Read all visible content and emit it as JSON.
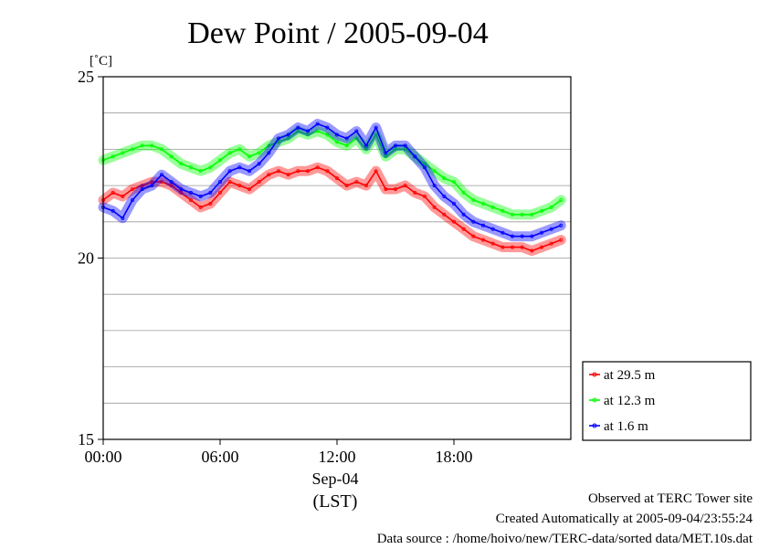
{
  "chart_data": {
    "type": "line",
    "title": "Dew Point / 2005-09-04",
    "ylabel": "[˚C]",
    "ylim": [
      15,
      25
    ],
    "yticks": [
      "25",
      "20",
      "15"
    ],
    "ytick_values": [
      25,
      20,
      15
    ],
    "xlim": [
      0,
      24
    ],
    "xticks": [
      "00:00",
      "06:00",
      "12:00",
      "18:00"
    ],
    "xtick_values": [
      0,
      6,
      12,
      18
    ],
    "xlabel_date": "Sep-04",
    "xlabel_unit": "(LST)",
    "grid": true,
    "legend_position": "right",
    "series": [
      {
        "name": "at 29.5 m",
        "color": "#ff0000",
        "x": [
          0,
          0.5,
          1,
          1.5,
          2,
          2.5,
          3,
          3.5,
          4,
          4.5,
          5,
          5.5,
          6,
          6.5,
          7,
          7.5,
          8,
          8.5,
          9,
          9.5,
          10,
          10.5,
          11,
          11.5,
          12,
          12.5,
          13,
          13.5,
          14,
          14.5,
          15,
          15.5,
          16,
          16.5,
          17,
          17.5,
          18,
          18.5,
          19,
          19.5,
          20,
          20.5,
          21,
          21.5,
          22,
          22.5,
          23,
          23.5
        ],
        "y": [
          21.6,
          21.8,
          21.7,
          21.9,
          22.0,
          22.1,
          22.1,
          22.0,
          21.8,
          21.6,
          21.4,
          21.5,
          21.8,
          22.1,
          22.0,
          21.9,
          22.1,
          22.3,
          22.4,
          22.3,
          22.4,
          22.4,
          22.5,
          22.4,
          22.2,
          22.0,
          22.1,
          22.0,
          22.4,
          21.9,
          21.9,
          22.0,
          21.8,
          21.7,
          21.4,
          21.2,
          21.0,
          20.8,
          20.6,
          20.5,
          20.4,
          20.3,
          20.3,
          20.3,
          20.2,
          20.3,
          20.4,
          20.5
        ]
      },
      {
        "name": "at 12.3 m",
        "color": "#00ff00",
        "x": [
          0,
          0.5,
          1,
          1.5,
          2,
          2.5,
          3,
          3.5,
          4,
          4.5,
          5,
          5.5,
          6,
          6.5,
          7,
          7.5,
          8,
          8.5,
          9,
          9.5,
          10,
          10.5,
          11,
          11.5,
          12,
          12.5,
          13,
          13.5,
          14,
          14.5,
          15,
          15.5,
          16,
          16.5,
          17,
          17.5,
          18,
          18.5,
          19,
          19.5,
          20,
          20.5,
          21,
          21.5,
          22,
          22.5,
          23,
          23.5
        ],
        "y": [
          22.7,
          22.8,
          22.9,
          23.0,
          23.1,
          23.1,
          23.0,
          22.8,
          22.6,
          22.5,
          22.4,
          22.5,
          22.7,
          22.9,
          23.0,
          22.8,
          22.9,
          23.1,
          23.2,
          23.3,
          23.5,
          23.4,
          23.5,
          23.4,
          23.2,
          23.1,
          23.3,
          23.0,
          23.4,
          22.8,
          23.0,
          23.0,
          22.8,
          22.6,
          22.4,
          22.2,
          22.1,
          21.8,
          21.6,
          21.5,
          21.4,
          21.3,
          21.2,
          21.2,
          21.2,
          21.3,
          21.4,
          21.6
        ]
      },
      {
        "name": "at 1.6 m",
        "color": "#0000ff",
        "x": [
          0,
          0.5,
          1,
          1.5,
          2,
          2.5,
          3,
          3.5,
          4,
          4.5,
          5,
          5.5,
          6,
          6.5,
          7,
          7.5,
          8,
          8.5,
          9,
          9.5,
          10,
          10.5,
          11,
          11.5,
          12,
          12.5,
          13,
          13.5,
          14,
          14.5,
          15,
          15.5,
          16,
          16.5,
          17,
          17.5,
          18,
          18.5,
          19,
          19.5,
          20,
          20.5,
          21,
          21.5,
          22,
          22.5,
          23,
          23.5
        ],
        "y": [
          21.4,
          21.3,
          21.1,
          21.6,
          21.9,
          22.0,
          22.3,
          22.1,
          21.9,
          21.8,
          21.7,
          21.8,
          22.1,
          22.4,
          22.5,
          22.4,
          22.6,
          22.9,
          23.3,
          23.4,
          23.6,
          23.5,
          23.7,
          23.6,
          23.4,
          23.3,
          23.5,
          23.1,
          23.6,
          22.9,
          23.1,
          23.1,
          22.8,
          22.5,
          22.0,
          21.7,
          21.5,
          21.2,
          21.0,
          20.9,
          20.8,
          20.7,
          20.6,
          20.6,
          20.6,
          20.7,
          20.8,
          20.9
        ]
      }
    ]
  },
  "footer": {
    "site": "Observed at TERC Tower site",
    "created": "Created Automatically at 2005-09-04/23:55:24",
    "source": "Data source : /home/hoivo/new/TERC-data/sorted  data/MET.10s.dat"
  }
}
